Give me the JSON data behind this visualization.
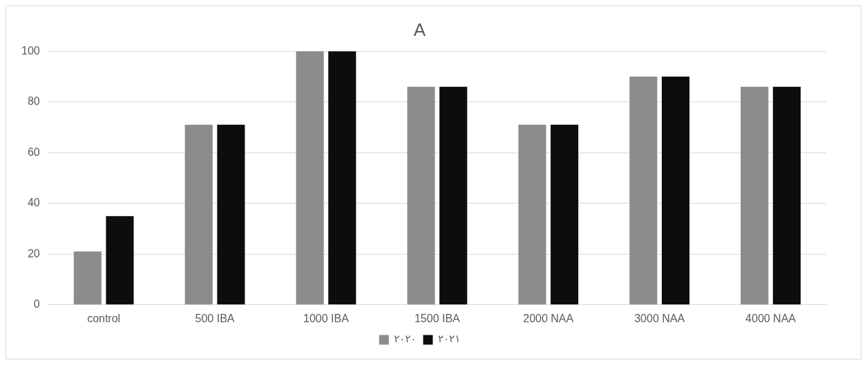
{
  "chart_data": {
    "type": "bar",
    "title": "A",
    "categories": [
      "control",
      "500 IBA",
      "1000 IBA",
      "1500 IBA",
      "2000 NAA",
      "3000 NAA",
      "4000 NAA"
    ],
    "series": [
      {
        "name": "٢٠٢٠",
        "color": "#8c8c8c",
        "values": [
          21,
          71,
          100,
          86,
          71,
          90,
          86
        ]
      },
      {
        "name": "٢٠٢١",
        "color": "#0d0d0d",
        "values": [
          35,
          71,
          100,
          86,
          71,
          90,
          86
        ]
      }
    ],
    "ylim": [
      0,
      100
    ],
    "yticks": [
      0,
      20,
      40,
      60,
      80,
      100
    ],
    "grid": "y",
    "legend": "bottom"
  }
}
